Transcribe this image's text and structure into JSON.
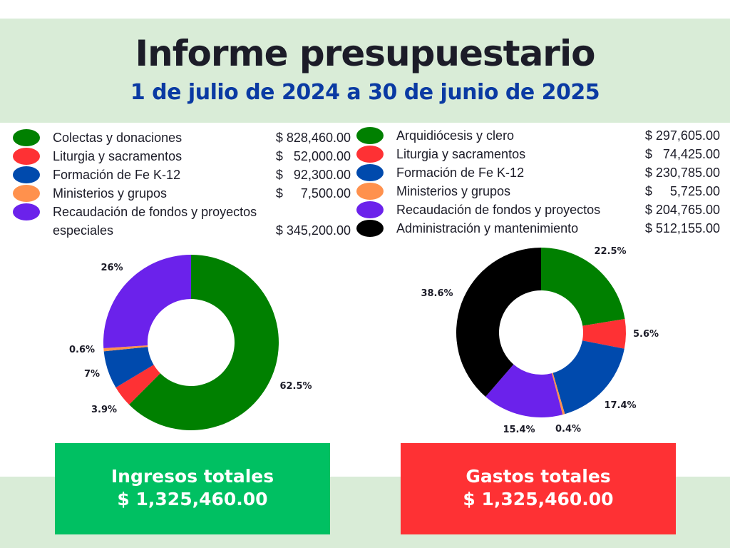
{
  "header": {
    "title": "Informe presupuestario",
    "subtitle": "1 de julio de 2024 a 30 de junio de 2025"
  },
  "totals": {
    "income_label": "Ingresos totales",
    "income_value": "$ 1,325,460.00",
    "income_color": "#00c062",
    "expense_label": "Gastos totales",
    "expense_value": "$ 1,325,460.00",
    "expense_color": "#fe3134"
  },
  "chart_data": [
    {
      "type": "pie",
      "categories": [
        "Colectas y donaciones",
        "Liturgia y sacramentos",
        "Formación de Fe K-12",
        "Ministerios y grupos",
        "Recaudación de fondos y proyectos especiales"
      ],
      "category_lines": [
        [
          "Colectas y donaciones"
        ],
        [
          "Liturgia y sacramentos"
        ],
        [
          "Formación de Fe K-12"
        ],
        [
          "Ministerios y grupos"
        ],
        [
          "Recaudación de fondos y proyectos",
          "especiales"
        ]
      ],
      "amounts": [
        "$ 828,460.00",
        "$   52,000.00",
        "$   92,300.00",
        "$     7,500.00",
        "$ 345,200.00"
      ],
      "values": [
        828460,
        52000,
        92300,
        7500,
        345200
      ],
      "percent_labels": [
        "62.5%",
        "3.9%",
        "7%",
        "0.6%",
        "26%"
      ],
      "colors": [
        "#008000",
        "#fe3134",
        "#004aad",
        "#ff914d",
        "#6b22eb"
      ],
      "legend_position": "top"
    },
    {
      "type": "pie",
      "categories": [
        "Arquidiócesis y clero",
        "Liturgia y sacramentos",
        "Formación de Fe K-12",
        "Ministerios y grupos",
        "Recaudación de fondos y proyectos",
        "Administración y mantenimiento"
      ],
      "category_lines": [
        [
          "Arquidiócesis y clero"
        ],
        [
          "Liturgia y sacramentos"
        ],
        [
          "Formación de Fe K-12"
        ],
        [
          "Ministerios y grupos"
        ],
        [
          "Recaudación de fondos y proyectos"
        ],
        [
          "Administración y mantenimiento"
        ]
      ],
      "amounts": [
        "$ 297,605.00",
        "$   74,425.00",
        "$ 230,785.00",
        "$     5,725.00",
        "$ 204,765.00",
        "$ 512,155.00"
      ],
      "values": [
        297605,
        74425,
        230785,
        5725,
        204765,
        512155
      ],
      "percent_labels": [
        "22.5%",
        "5.6%",
        "17.4%",
        "0.4%",
        "15.4%",
        "38.6%"
      ],
      "colors": [
        "#008000",
        "#fe3134",
        "#004aad",
        "#ff914d",
        "#6b22eb",
        "#000000"
      ],
      "legend_position": "top"
    }
  ]
}
